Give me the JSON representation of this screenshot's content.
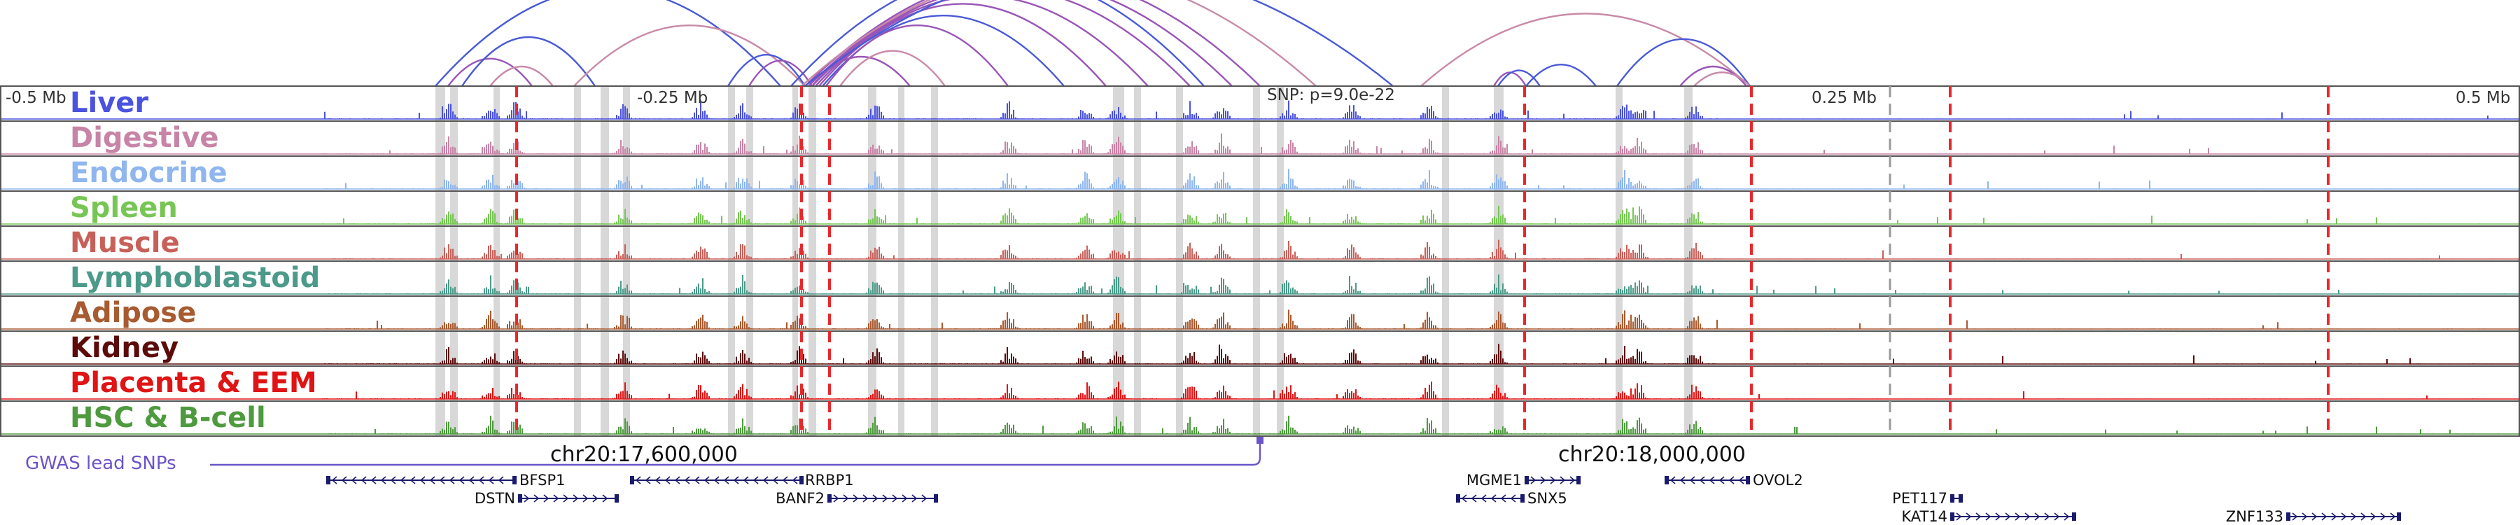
{
  "window": {
    "position_labels": [
      "-0.5 Mb",
      "-0.25 Mb",
      "0.25 Mb",
      "0.5 Mb"
    ],
    "snp_annotation": "SNP: p=9.0e-22",
    "center_coords": [
      "chr20:17,600,000",
      "chr20:18,000,000"
    ],
    "gwas_label": "GWAS lead SNPs"
  },
  "colors": {
    "arc_blue": "#4a5ad6",
    "arc_purple": "#9a55b8",
    "arc_pink": "#c98aa8",
    "highlight": "#d8d8d8",
    "boundary_red": "#e8282a",
    "boundary_gray": "#9a9a9a",
    "gene": "#1a1a6e"
  },
  "tracks": [
    {
      "name": "Liver",
      "color": "#4a52de"
    },
    {
      "name": "Digestive",
      "color": "#c784a6"
    },
    {
      "name": "Endocrine",
      "color": "#8fb6ee"
    },
    {
      "name": "Spleen",
      "color": "#77c655"
    },
    {
      "name": "Muscle",
      "color": "#c8605a"
    },
    {
      "name": "Lymphoblastoid",
      "color": "#4c9a8a"
    },
    {
      "name": "Adipose",
      "color": "#a85a30"
    },
    {
      "name": "Kidney",
      "color": "#5c0a0a"
    },
    {
      "name": "Placenta & EEM",
      "color": "#e01414"
    },
    {
      "name": "HSC & B-cell",
      "color": "#4e9a3e"
    }
  ],
  "genes": [
    {
      "name": "BFSP1",
      "strand": "-"
    },
    {
      "name": "DSTN",
      "strand": "+"
    },
    {
      "name": "RRBP1",
      "strand": "-"
    },
    {
      "name": "BANF2",
      "strand": "+"
    },
    {
      "name": "MGME1",
      "strand": "+"
    },
    {
      "name": "SNX5",
      "strand": "-"
    },
    {
      "name": "OVOL2",
      "strand": "-"
    },
    {
      "name": "PET117",
      "strand": "+"
    },
    {
      "name": "KAT14",
      "strand": "+"
    },
    {
      "name": "ZNF133",
      "strand": "+"
    }
  ]
}
